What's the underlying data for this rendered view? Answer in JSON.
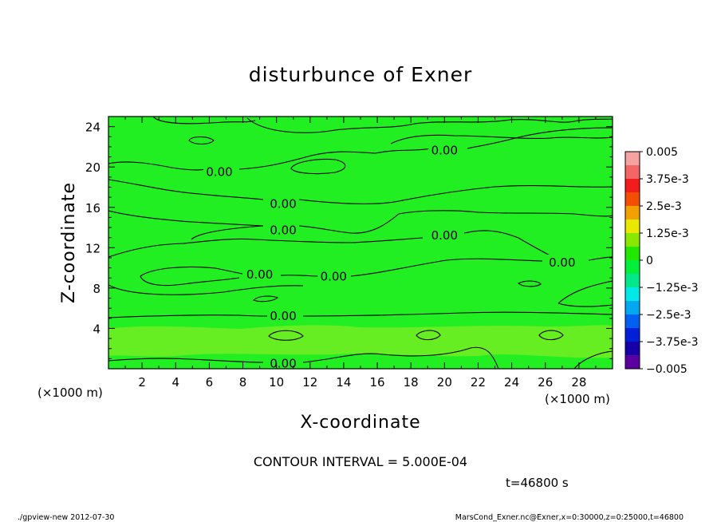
{
  "chart_data": {
    "type": "contour",
    "title": "disturbunce of Exner",
    "xlabel": "X-coordinate",
    "ylabel": "Z-coordinate",
    "x_unit_left": "(×1000 m)",
    "x_unit_right": "(×1000 m)",
    "xlim": [
      0,
      30
    ],
    "ylim": [
      0,
      25
    ],
    "x_ticks": [
      2,
      4,
      6,
      8,
      10,
      12,
      14,
      16,
      18,
      20,
      22,
      24,
      26,
      28
    ],
    "y_ticks": [
      4,
      8,
      12,
      16,
      20,
      24
    ],
    "contour_interval_text": "CONTOUR INTERVAL = 5.000E-04",
    "time_text": "t=46800 s",
    "contour_labels": [
      {
        "text": "0.00",
        "x": 6.6,
        "z": 19.6
      },
      {
        "text": "0.00",
        "x": 10.4,
        "z": 16.4
      },
      {
        "text": "0.00",
        "x": 10.4,
        "z": 13.8
      },
      {
        "text": "0.00",
        "x": 9.0,
        "z": 9.4
      },
      {
        "text": "0.00",
        "x": 13.4,
        "z": 9.2
      },
      {
        "text": "0.00",
        "x": 10.4,
        "z": 5.3
      },
      {
        "text": "0.00",
        "x": 10.4,
        "z": 0.6
      },
      {
        "text": "0.00",
        "x": 20.0,
        "z": 21.7
      },
      {
        "text": "0.00",
        "x": 20.0,
        "z": 13.3
      },
      {
        "text": "0.00",
        "x": 27.0,
        "z": 10.6
      }
    ],
    "colorbar": {
      "labels": [
        "0.005",
        "3.75e-3",
        "2.5e-3",
        "1.25e-3",
        "0",
        "−1.25e-3",
        "−2.5e-3",
        "−3.75e-3",
        "−0.005"
      ],
      "colors": [
        "#f5a2a2",
        "#f46666",
        "#f21c1c",
        "#f25000",
        "#f2a000",
        "#e8e800",
        "#8ae800",
        "#22e800",
        "#00ef3a",
        "#00e88a",
        "#00e8e8",
        "#00a8f2",
        "#0060f2",
        "#0020d8",
        "#1800a8",
        "#5a00a0"
      ]
    }
  },
  "footer": {
    "left": "./gpview-new   2012-07-30",
    "right": "MarsCond_Exner.nc@Exner,x=0:30000,z=0:25000,t=46800"
  }
}
